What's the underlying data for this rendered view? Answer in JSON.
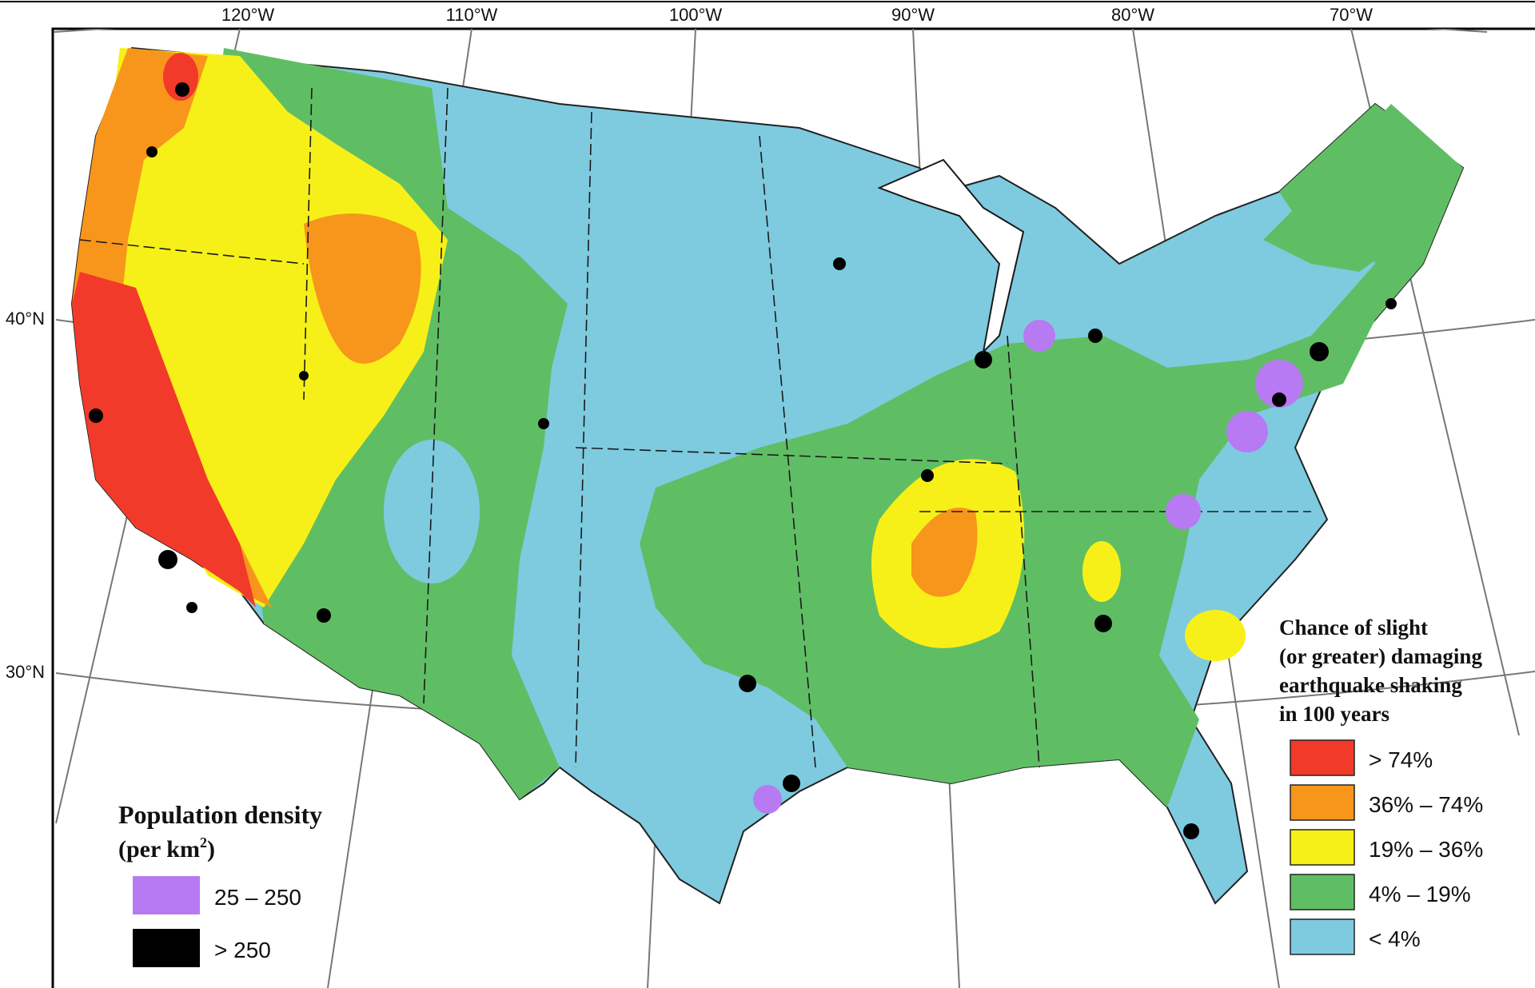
{
  "graticule": {
    "longitude_labels": [
      "120°W",
      "110°W",
      "100°W",
      "90°W",
      "80°W",
      "70°W"
    ],
    "latitude_labels": [
      "40°N",
      "30°N"
    ]
  },
  "hazard_legend": {
    "title_lines": [
      "Chance of slight",
      "(or greater) damaging",
      "earthquake shaking",
      "in 100 years"
    ],
    "items": [
      {
        "label": "> 74%",
        "color": "#f23a2a"
      },
      {
        "label": "36% – 74%",
        "color": "#f8961c"
      },
      {
        "label": "19% – 36%",
        "color": "#f7f018"
      },
      {
        "label": "4% – 19%",
        "color": "#5fbe64"
      },
      {
        "label": "< 4%",
        "color": "#7ecbe0"
      }
    ]
  },
  "population_legend": {
    "title": "Population density",
    "unit_prefix": "(per km",
    "unit_superscript": "2",
    "unit_suffix": ")",
    "items": [
      {
        "label": "25 – 250",
        "color": "#b77af2"
      },
      {
        "label": "> 250",
        "color": "#000000"
      }
    ]
  },
  "colors": {
    "frame": "#000000",
    "graticule": "#777777",
    "state_border": "#1a1a1a"
  }
}
